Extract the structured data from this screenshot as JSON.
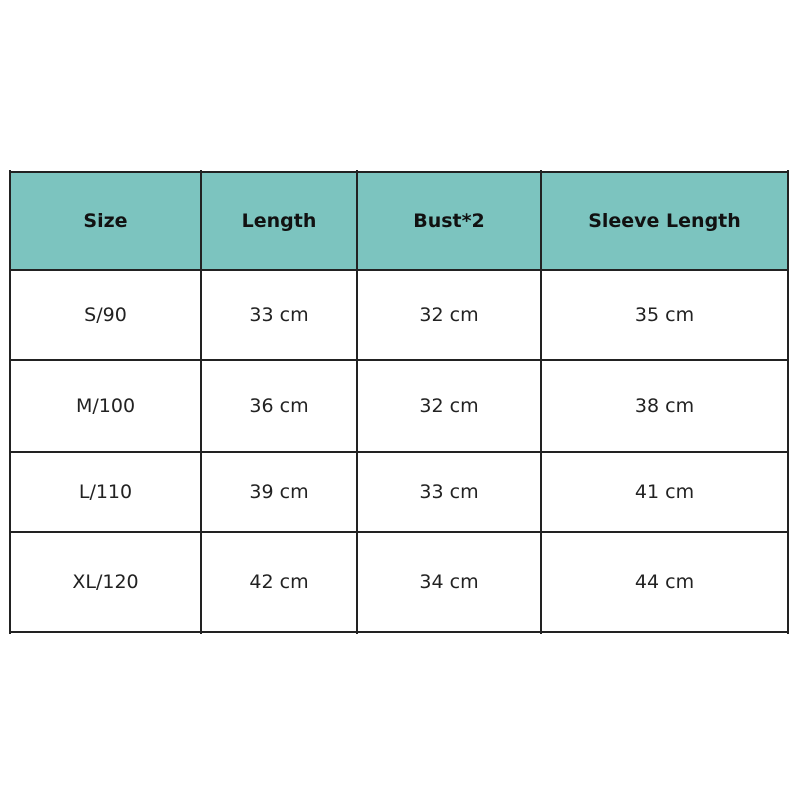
{
  "table": {
    "headers": [
      "Size",
      "Length",
      "Bust*2",
      "Sleeve Length"
    ],
    "rows": [
      [
        "S/90",
        "33 cm",
        "32 cm",
        "35 cm"
      ],
      [
        "M/100",
        "36 cm",
        "32 cm",
        "38 cm"
      ],
      [
        "L/110",
        "39 cm",
        "33 cm",
        "41 cm"
      ],
      [
        "XL/120",
        "42 cm",
        "34 cm",
        "44 cm"
      ]
    ]
  }
}
